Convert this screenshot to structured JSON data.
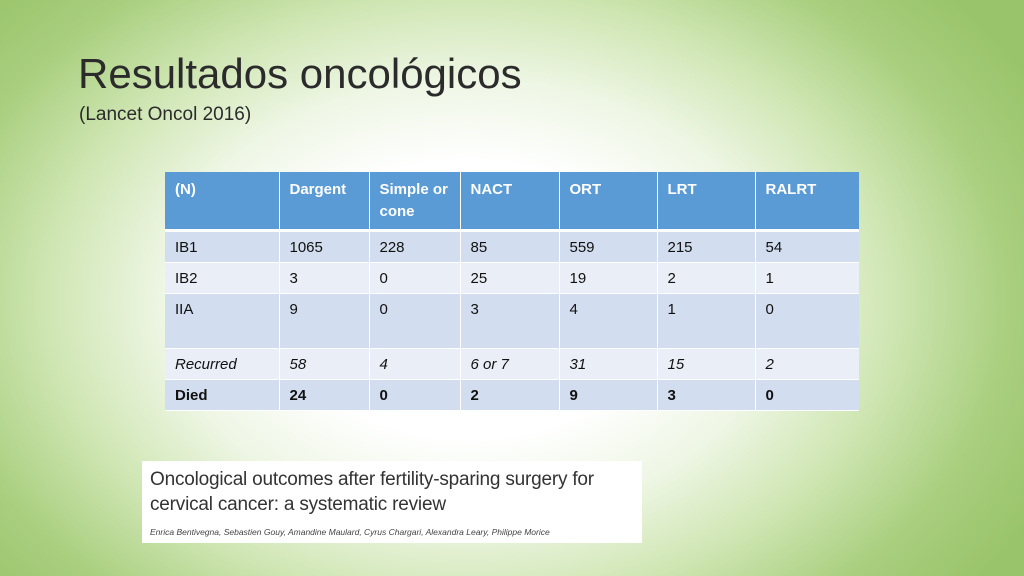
{
  "slide": {
    "title": "Resultados oncológicos",
    "subtitle": "(Lancet Oncol 2016)"
  },
  "table": {
    "headers": [
      "(N)",
      "Dargent",
      "Simple or cone",
      "NACT",
      "ORT",
      "LRT",
      "RALRT"
    ],
    "rows": [
      {
        "label": "IB1",
        "values": [
          "1065",
          "228",
          "85",
          "559",
          "215",
          "54"
        ]
      },
      {
        "label": "IB2",
        "values": [
          "3",
          "0",
          "25",
          "19",
          "2",
          "1"
        ]
      },
      {
        "label": "IIA",
        "values": [
          "9",
          "0",
          "3",
          "4",
          "1",
          "0"
        ]
      },
      {
        "label": "Recurred",
        "values": [
          "58",
          "4",
          "6 or 7",
          "31",
          "15",
          "2"
        ]
      },
      {
        "label": "Died",
        "values": [
          "24",
          "0",
          "2",
          "9",
          "3",
          "0"
        ]
      }
    ]
  },
  "paper": {
    "title": "Oncological outcomes after fertility-sparing surgery for cervical cancer: a systematic review",
    "authors": "Enrica Bentivegna, Sebastien Gouy, Amandine Maulard, Cyrus Chargari, Alexandra Leary, Philippe Morice"
  }
}
